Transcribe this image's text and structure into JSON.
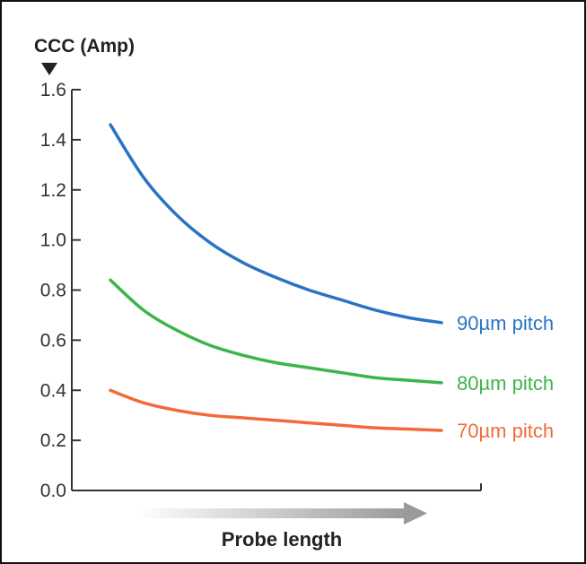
{
  "chart_data": {
    "type": "line",
    "title": "",
    "ylabel": "CCC (Amp)",
    "xlabel": "Probe length",
    "ylim": [
      0,
      1.6
    ],
    "yticks": [
      "0.0",
      "0.2",
      "0.4",
      "0.6",
      "0.8",
      "1.0",
      "1.2",
      "1.4",
      "1.6"
    ],
    "x_ticks_shown": false,
    "grid": false,
    "legend": "inline-right",
    "x": [
      0,
      0.1,
      0.2,
      0.3,
      0.4,
      0.5,
      0.6,
      0.7,
      0.8,
      0.9,
      1.0
    ],
    "series": [
      {
        "name": "90µm pitch",
        "color": "#2a73c4",
        "values": [
          1.46,
          1.25,
          1.1,
          0.99,
          0.91,
          0.85,
          0.8,
          0.76,
          0.72,
          0.69,
          0.67
        ]
      },
      {
        "name": "80µm pitch",
        "color": "#3cb54a",
        "values": [
          0.84,
          0.72,
          0.64,
          0.58,
          0.54,
          0.51,
          0.49,
          0.47,
          0.45,
          0.44,
          0.43
        ]
      },
      {
        "name": "70µm pitch",
        "color": "#f26a3b",
        "values": [
          0.4,
          0.35,
          0.32,
          0.3,
          0.29,
          0.28,
          0.27,
          0.26,
          0.25,
          0.245,
          0.24
        ]
      }
    ]
  }
}
